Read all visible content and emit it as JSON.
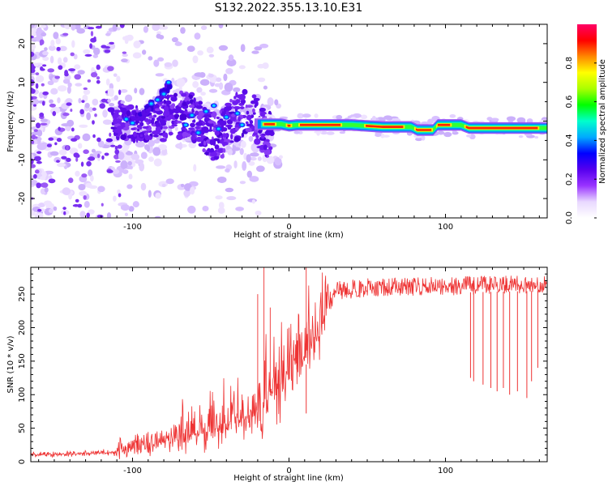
{
  "title": "S132.2022.355.13.10.E31",
  "chart_data": [
    {
      "type": "heatmap",
      "xlabel": "Height of straight line (km)",
      "ylabel": "Frequency (Hz)",
      "xlim": [
        -165,
        165
      ],
      "ylim": [
        -25,
        25
      ],
      "x_ticks": [
        -100,
        0,
        100
      ],
      "y_ticks": [
        -20,
        -10,
        0,
        10,
        20
      ],
      "colorbar": {
        "label": "Normalized spectral amplitude",
        "range": [
          0,
          1
        ],
        "ticks": [
          0.0,
          0.2,
          0.4,
          0.6,
          0.8
        ],
        "colormap": [
          "#ffffff",
          "#e8d8ff",
          "#9933ff",
          "#5500ee",
          "#0000ff",
          "#00aaff",
          "#00ffcc",
          "#00ff00",
          "#aaff00",
          "#ffff00",
          "#ff8800",
          "#ff0000",
          "#ff0066"
        ]
      },
      "ridge": [
        {
          "x": -20,
          "y": -0.8
        },
        {
          "x": -5,
          "y": -0.8
        },
        {
          "x": 0,
          "y": -1.2
        },
        {
          "x": 5,
          "y": -1.0
        },
        {
          "x": 40,
          "y": -1.0
        },
        {
          "x": 60,
          "y": -1.5
        },
        {
          "x": 78,
          "y": -1.5
        },
        {
          "x": 82,
          "y": -2.3
        },
        {
          "x": 92,
          "y": -2.3
        },
        {
          "x": 95,
          "y": -1.0
        },
        {
          "x": 110,
          "y": -1.0
        },
        {
          "x": 115,
          "y": -1.8
        },
        {
          "x": 165,
          "y": -1.8
        }
      ]
    },
    {
      "type": "line",
      "xlabel": "Height of straight line (km)",
      "ylabel": "SNR (10 * v/v)",
      "xlim": [
        -165,
        165
      ],
      "ylim": [
        0,
        290
      ],
      "x_ticks": [
        -100,
        0,
        100
      ],
      "y_ticks": [
        0,
        50,
        100,
        150,
        200,
        250
      ],
      "color": "#ee3333",
      "series": [
        {
          "trend": [
            {
              "x": -165,
              "y": 10
            },
            {
              "x": -110,
              "y": 14
            },
            {
              "x": -80,
              "y": 28
            },
            {
              "x": -60,
              "y": 40
            },
            {
              "x": -40,
              "y": 52
            },
            {
              "x": -25,
              "y": 68
            },
            {
              "x": -18,
              "y": 80
            },
            {
              "x": -10,
              "y": 105
            },
            {
              "x": 0,
              "y": 125
            },
            {
              "x": 10,
              "y": 150
            },
            {
              "x": 20,
              "y": 200
            },
            {
              "x": 25,
              "y": 235
            },
            {
              "x": 30,
              "y": 255
            },
            {
              "x": 50,
              "y": 260
            },
            {
              "x": 100,
              "y": 262
            },
            {
              "x": 165,
              "y": 265
            }
          ],
          "spikes_up": [
            {
              "x": -16,
              "y": 290
            },
            {
              "x": 11,
              "y": 290
            },
            {
              "x": -20,
              "y": 250
            },
            {
              "x": 0,
              "y": 200
            },
            {
              "x": 5,
              "y": 180
            },
            {
              "x": -12,
              "y": 230
            }
          ],
          "dips": [
            {
              "x": 11,
              "y": 72
            },
            {
              "x": 116,
              "y": 125
            },
            {
              "x": 118,
              "y": 120
            },
            {
              "x": 124,
              "y": 115
            },
            {
              "x": 129,
              "y": 110
            },
            {
              "x": 133,
              "y": 105
            },
            {
              "x": 137,
              "y": 110
            },
            {
              "x": 141,
              "y": 100
            },
            {
              "x": 146,
              "y": 105
            },
            {
              "x": 152,
              "y": 95
            },
            {
              "x": 155,
              "y": 120
            },
            {
              "x": 159,
              "y": 140
            }
          ]
        }
      ]
    }
  ]
}
